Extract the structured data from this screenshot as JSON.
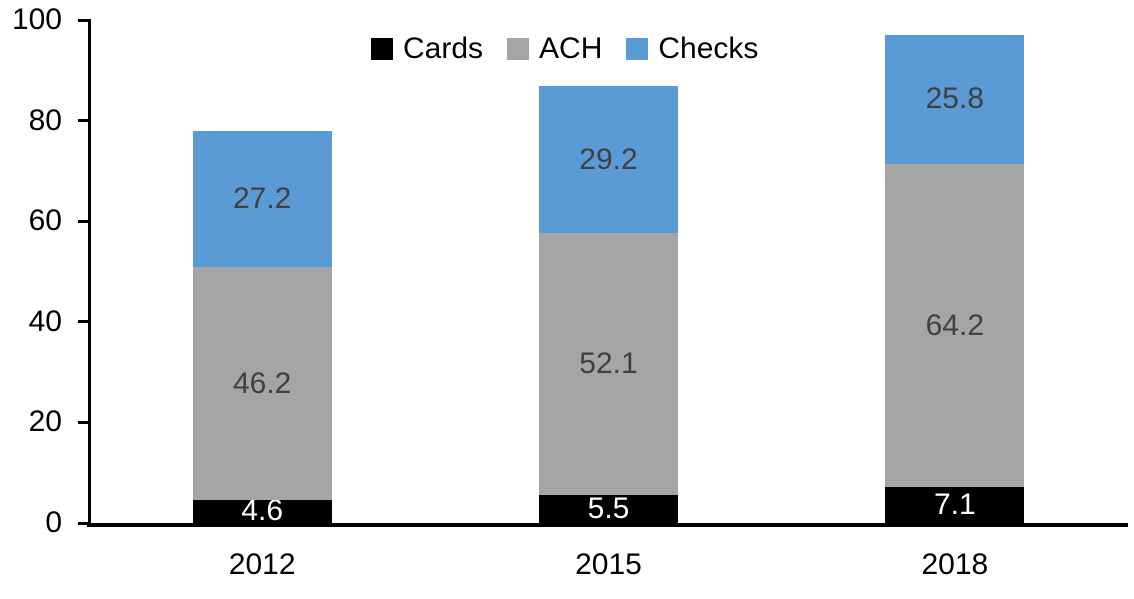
{
  "chart_data": {
    "type": "bar",
    "stacked": true,
    "title": "",
    "xlabel": "",
    "ylabel": "",
    "categories": [
      "2012",
      "2015",
      "2018"
    ],
    "series": [
      {
        "name": "Cards",
        "color": "#000000",
        "label_color": "#ffffff",
        "values": [
          4.6,
          5.5,
          7.1
        ]
      },
      {
        "name": "ACH",
        "color": "#a5a5a5",
        "label_color": "#404040",
        "values": [
          46.2,
          52.1,
          64.2
        ]
      },
      {
        "name": "Checks",
        "color": "#5b9bd5",
        "label_color": "#404040",
        "values": [
          27.2,
          29.2,
          25.8
        ]
      }
    ],
    "ylim": [
      0,
      100
    ],
    "yticks": [
      0,
      20,
      40,
      60,
      80,
      100
    ],
    "grid": false,
    "value_labels": true,
    "legend_position": "top-center",
    "axis_color": "#000000",
    "background_color": "#ffffff"
  }
}
